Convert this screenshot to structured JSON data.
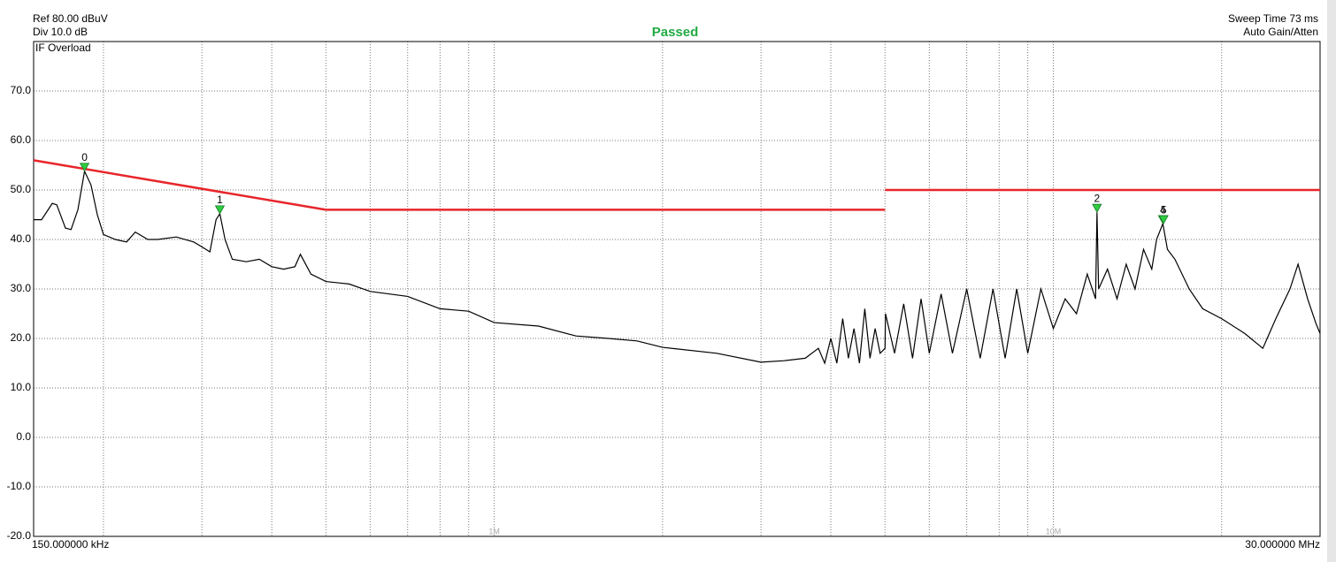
{
  "chart_data": {
    "type": "line",
    "ref_label": "Ref 80.00 dBuV",
    "div_label": "Div 10.0 dB",
    "status_label": "IF Overload",
    "title": "Passed",
    "sweep_label": "Sweep Time 73 ms",
    "gain_label": "Auto Gain/Atten",
    "start_label": "150.000000 kHz",
    "stop_label": "30.000000 MHz",
    "log_x": true,
    "xlim": [
      0.15,
      30
    ],
    "ylim": [
      -20,
      80
    ],
    "xticks": [
      {
        "value": 1,
        "label": "1M"
      },
      {
        "value": 10,
        "label": "10M"
      }
    ],
    "xgrid": [
      0.2,
      0.3,
      0.4,
      0.5,
      0.6,
      0.7,
      0.8,
      0.9,
      1,
      2,
      3,
      4,
      5,
      6,
      7,
      8,
      9,
      10,
      20
    ],
    "yticks": [
      {
        "value": -20,
        "label": "-20.0"
      },
      {
        "value": -10,
        "label": "-10.0"
      },
      {
        "value": 0,
        "label": "0.0"
      },
      {
        "value": 10,
        "label": "10.0"
      },
      {
        "value": 20,
        "label": "20.0"
      },
      {
        "value": 30,
        "label": "30.0"
      },
      {
        "value": 40,
        "label": "40.0"
      },
      {
        "value": 50,
        "label": "50.0"
      },
      {
        "value": 60,
        "label": "60.0"
      },
      {
        "value": 70,
        "label": "70.0"
      }
    ],
    "grid": true,
    "series": [
      {
        "color": "#000000",
        "x": [
          0.15,
          0.155,
          0.162,
          0.165,
          0.171,
          0.175,
          0.18,
          0.185,
          0.19,
          0.195,
          0.2,
          0.21,
          0.22,
          0.228,
          0.24,
          0.25,
          0.27,
          0.29,
          0.3,
          0.31,
          0.318,
          0.323,
          0.33,
          0.34,
          0.36,
          0.38,
          0.4,
          0.42,
          0.44,
          0.45,
          0.47,
          0.5,
          0.55,
          0.6,
          0.7,
          0.8,
          0.9,
          1.0,
          1.2,
          1.4,
          1.6,
          1.8,
          2.0,
          2.5,
          3.0,
          3.3,
          3.6,
          3.8,
          3.9,
          4.0,
          4.1,
          4.2,
          4.3,
          4.4,
          4.5,
          4.6,
          4.7,
          4.8,
          4.9,
          5.0,
          5.01,
          5.2,
          5.4,
          5.6,
          5.8,
          6.0,
          6.3,
          6.6,
          7.0,
          7.4,
          7.8,
          8.2,
          8.6,
          9.0,
          9.5,
          10,
          10.5,
          11,
          11.5,
          11.9,
          11.97,
          12.05,
          12.5,
          13,
          13.5,
          14,
          14.5,
          15,
          15.3,
          15.7,
          16.0,
          16.5,
          17.5,
          18.5,
          20,
          22,
          23.7,
          25,
          26.5,
          27.4,
          28.5,
          29.5,
          30
        ],
        "values": [
          44,
          44,
          47.3,
          47,
          42.3,
          42,
          46,
          53.8,
          51,
          45,
          41,
          40,
          39.5,
          41.5,
          40,
          40,
          40.5,
          39.5,
          38.5,
          37.5,
          44,
          45.2,
          40,
          36,
          35.5,
          36,
          34.5,
          34,
          34.5,
          37,
          33,
          31.5,
          31,
          29.5,
          28.5,
          26,
          25.5,
          23.2,
          22.5,
          20.5,
          20,
          19.5,
          18.2,
          17,
          15.2,
          15.5,
          16,
          18,
          15,
          20,
          15,
          24,
          16,
          22,
          15,
          26,
          16,
          22,
          17,
          18,
          25,
          17,
          27,
          16,
          28,
          17,
          29,
          17,
          30,
          16,
          30,
          16,
          30,
          17,
          30,
          22,
          28,
          25,
          33,
          28,
          45.5,
          30,
          34,
          28,
          35,
          30,
          38,
          34,
          40,
          43.2,
          38,
          36,
          30,
          26,
          24,
          21,
          18,
          24,
          30,
          35,
          28,
          23,
          21
        ]
      },
      {
        "color": "#e8252a",
        "x": [
          0.15,
          0.5
        ],
        "values": [
          56,
          46
        ]
      },
      {
        "color": "#e8252a",
        "x": [
          0.5,
          5
        ],
        "values": [
          46,
          46
        ]
      },
      {
        "color": "#e8252a",
        "x": [
          5,
          30
        ],
        "values": [
          50,
          50
        ]
      }
    ],
    "markers": [
      {
        "label": "0",
        "x": 0.185,
        "value": 53.8
      },
      {
        "label": "1",
        "x": 0.323,
        "value": 45.2
      },
      {
        "label": "2",
        "x": 11.97,
        "value": 45.5
      },
      {
        "label": "4",
        "x": 15.7,
        "value": 43.2
      },
      {
        "label": "5",
        "x": 15.75,
        "value": 43.2
      }
    ],
    "marker_color": "#2ecc40"
  }
}
